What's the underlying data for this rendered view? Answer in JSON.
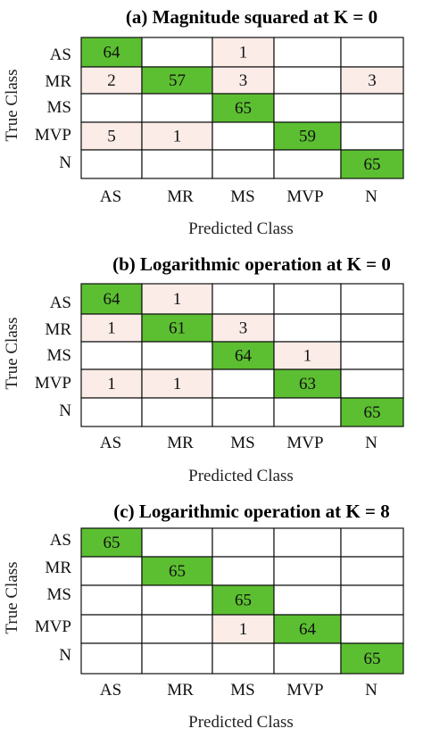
{
  "chart_data": [
    {
      "type": "heatmap",
      "title": "(a) Magnitude squared at  K = 0",
      "xlabel": "Predicted Class",
      "ylabel": "True Class",
      "rows": [
        "AS",
        "MR",
        "MS",
        "MVP",
        "N"
      ],
      "cols": [
        "AS",
        "MR",
        "MS",
        "MVP",
        "N"
      ],
      "matrix": [
        [
          64,
          0,
          1,
          0,
          0
        ],
        [
          2,
          57,
          3,
          0,
          3
        ],
        [
          0,
          0,
          65,
          0,
          0
        ],
        [
          5,
          1,
          0,
          59,
          0
        ],
        [
          0,
          0,
          0,
          0,
          65
        ]
      ]
    },
    {
      "type": "heatmap",
      "title": "(b) Logarithmic operation at K = 0",
      "xlabel": "Predicted Class",
      "ylabel": "True Class",
      "rows": [
        "AS",
        "MR",
        "MS",
        "MVP",
        "N"
      ],
      "cols": [
        "AS",
        "MR",
        "MS",
        "MVP",
        "N"
      ],
      "matrix": [
        [
          64,
          1,
          0,
          0,
          0
        ],
        [
          1,
          61,
          3,
          0,
          0
        ],
        [
          0,
          0,
          64,
          1,
          0
        ],
        [
          1,
          1,
          0,
          63,
          0
        ],
        [
          0,
          0,
          0,
          0,
          65
        ]
      ]
    },
    {
      "type": "heatmap",
      "title": "(c) Logarithmic operation at K = 8",
      "xlabel": "Predicted Class",
      "ylabel": "True Class",
      "rows": [
        "AS",
        "MR",
        "MS",
        "MVP",
        "N"
      ],
      "cols": [
        "AS",
        "MR",
        "MS",
        "MVP",
        "N"
      ],
      "matrix": [
        [
          65,
          0,
          0,
          0,
          0
        ],
        [
          0,
          65,
          0,
          0,
          0
        ],
        [
          0,
          0,
          65,
          0,
          0
        ],
        [
          0,
          0,
          1,
          64,
          0
        ],
        [
          0,
          0,
          0,
          0,
          65
        ]
      ]
    }
  ],
  "colors": {
    "diagonal": "#5cbf31",
    "off_diagonal": "#fbece8",
    "empty": "#ffffff",
    "grid": "#111111"
  }
}
